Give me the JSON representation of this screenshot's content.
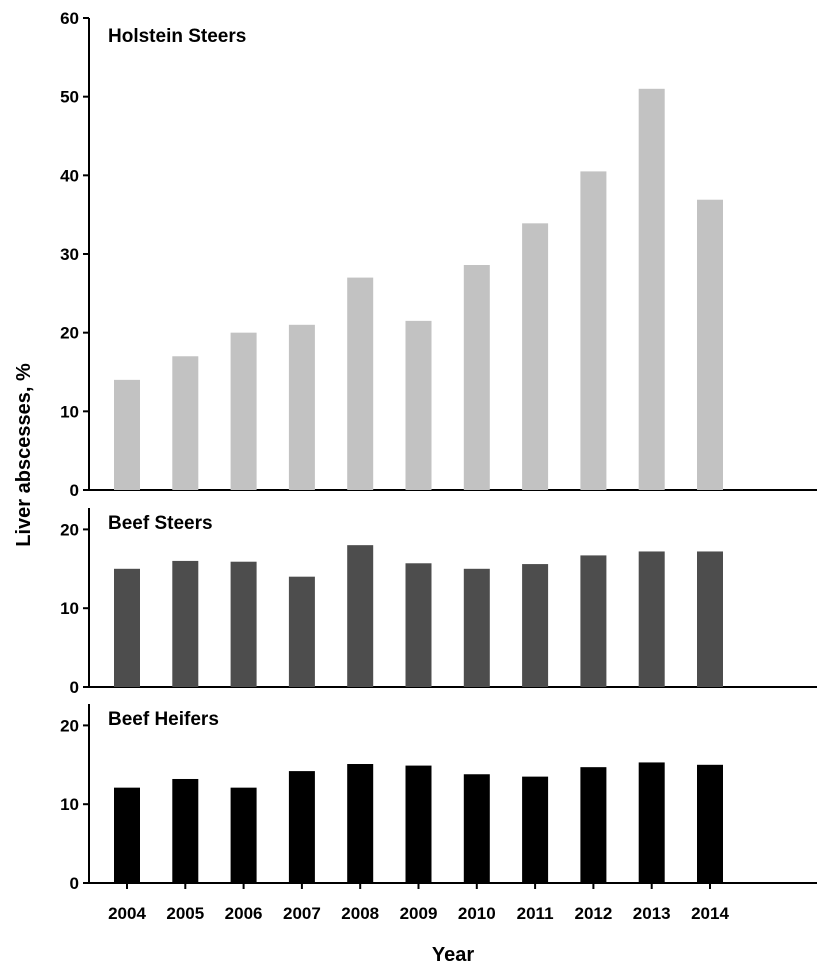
{
  "chart_data": {
    "type": "bar",
    "layout": "stacked-panels",
    "xlabel": "Year",
    "ylabel": "Liver abscesses, %",
    "categories": [
      "2004",
      "2005",
      "2006",
      "2007",
      "2008",
      "2009",
      "2010",
      "2011",
      "2012",
      "2013",
      "2014"
    ],
    "panels": [
      {
        "title": "Holstein Steers",
        "color": "#c2c2c2",
        "ylim": [
          0,
          60
        ],
        "yticks": [
          0,
          10,
          20,
          30,
          40,
          50,
          60
        ],
        "values": [
          14,
          17,
          20,
          21,
          27,
          21.5,
          28.6,
          33.9,
          40.5,
          51,
          36.9
        ]
      },
      {
        "title": "Beef Steers",
        "color": "#4d4d4d",
        "ylim": [
          0,
          23
        ],
        "yticks": [
          0,
          10,
          20
        ],
        "values": [
          15,
          16,
          15.9,
          14,
          18,
          15.7,
          15,
          15.6,
          16.7,
          17.2,
          17.2
        ]
      },
      {
        "title": "Beef Heifers",
        "color": "#000000",
        "ylim": [
          0,
          23
        ],
        "yticks": [
          0,
          10,
          20
        ],
        "values": [
          12.1,
          13.2,
          12.1,
          14.2,
          15.1,
          14.9,
          13.8,
          13.5,
          14.7,
          15.3,
          15
        ]
      }
    ]
  }
}
